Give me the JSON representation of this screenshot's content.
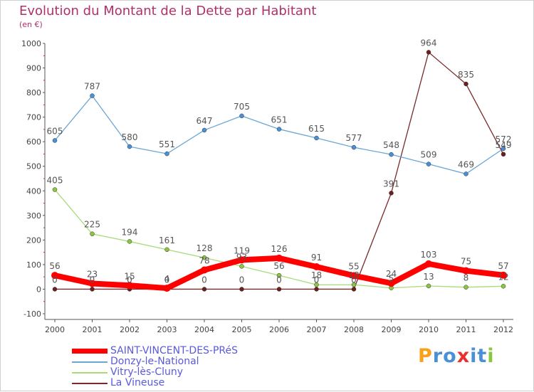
{
  "chart_data": {
    "type": "line",
    "title": "Evolution du Montant de la Dette par Habitant",
    "subtitle": "(en €)",
    "xlabel": "",
    "ylabel": "",
    "categories": [
      "2000",
      "2001",
      "2002",
      "2003",
      "2004",
      "2005",
      "2006",
      "2007",
      "2008",
      "2009",
      "2010",
      "2011",
      "2012"
    ],
    "ylim": [
      -100,
      1000
    ],
    "yticks": [
      -100,
      0,
      100,
      200,
      300,
      400,
      500,
      600,
      700,
      800,
      900,
      1000
    ],
    "ytick_labels": [
      "-100",
      "0",
      "100",
      "200",
      "300",
      "400",
      "500",
      "600",
      "700",
      "800",
      "900",
      "1000"
    ],
    "grid": false,
    "legend_position": "bottom-left",
    "series": [
      {
        "name": "SAINT-VINCENT-DES-PRéS",
        "color": "#ff0000",
        "values": [
          56,
          23,
          15,
          4,
          78,
          119,
          126,
          91,
          55,
          24,
          103,
          75,
          57
        ]
      },
      {
        "name": "Donzy-le-National",
        "color": "#6aa6d6",
        "values": [
          605,
          787,
          580,
          551,
          647,
          705,
          651,
          615,
          577,
          548,
          509,
          469,
          572
        ]
      },
      {
        "name": "Vitry-lès-Cluny",
        "color": "#a8dc78",
        "values": [
          405,
          225,
          194,
          161,
          128,
          93,
          56,
          18,
          18,
          5,
          13,
          8,
          12
        ]
      },
      {
        "name": "La Vineuse",
        "color": "#7a2a2a",
        "values": [
          0,
          0,
          0,
          0,
          0,
          0,
          0,
          0,
          0,
          391,
          964,
          835,
          549
        ]
      }
    ],
    "data_labels": [
      [
        "56",
        "23",
        "15",
        "4",
        "78",
        "119",
        "126",
        "91",
        "55",
        "24",
        "103",
        "75",
        "57"
      ],
      [
        "605",
        "787",
        "580",
        "551",
        "647",
        "705",
        "651",
        "615",
        "577",
        "548",
        "509",
        "469",
        "572"
      ],
      [
        "405",
        "225",
        "194",
        "161",
        "128",
        "93",
        "56",
        "18",
        "18",
        "5",
        "13",
        "8",
        "12"
      ],
      [
        "0",
        "0",
        "0",
        "0",
        "0",
        "0",
        "0",
        "0",
        "0",
        "391",
        "964",
        "835",
        "549"
      ]
    ]
  },
  "brand": {
    "text": "Proxiti",
    "letters": [
      "P",
      "r",
      "o",
      "x",
      "i",
      "t",
      "i"
    ],
    "colors": [
      "#f7a21b",
      "#4a90d9",
      "#4a90d9",
      "#e8312d",
      "#4a90d9",
      "#4a90d9",
      "#8cc63f"
    ]
  },
  "colors": {
    "title": "#b0306a",
    "axis": "#555555",
    "legend_text": "#5a5adc"
  }
}
